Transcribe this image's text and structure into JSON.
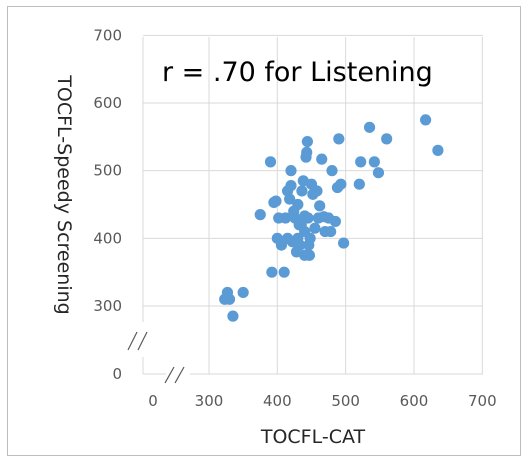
{
  "chart_data": {
    "type": "scatter",
    "title": "",
    "annotation": "r = .70 for Listening",
    "xlabel": "TOCFL-CAT",
    "ylabel": "TOCFL-Speedy Screening",
    "x_ticks": [
      "0",
      "300",
      "400",
      "500",
      "600",
      "700"
    ],
    "y_ticks": [
      "0",
      "300",
      "400",
      "500",
      "600",
      "700"
    ],
    "xlim": [
      250,
      700
    ],
    "ylim": [
      250,
      700
    ],
    "axis_breaks": true,
    "grid": true,
    "marker_color": "#5b9bd5",
    "series": [
      {
        "points": [
          [
            323,
            310
          ],
          [
            327,
            320
          ],
          [
            330,
            310
          ],
          [
            335,
            285
          ],
          [
            350,
            320
          ],
          [
            375,
            435
          ],
          [
            390,
            513
          ],
          [
            392,
            350
          ],
          [
            395,
            453
          ],
          [
            398,
            455
          ],
          [
            400,
            400
          ],
          [
            402,
            430
          ],
          [
            406,
            390
          ],
          [
            410,
            350
          ],
          [
            412,
            430
          ],
          [
            415,
            470
          ],
          [
            415,
            400
          ],
          [
            418,
            458
          ],
          [
            420,
            500
          ],
          [
            420,
            478
          ],
          [
            422,
            395
          ],
          [
            424,
            440
          ],
          [
            426,
            430
          ],
          [
            428,
            380
          ],
          [
            430,
            400
          ],
          [
            430,
            450
          ],
          [
            432,
            420
          ],
          [
            433,
            390
          ],
          [
            435,
            420
          ],
          [
            436,
            470
          ],
          [
            438,
            485
          ],
          [
            440,
            433
          ],
          [
            440,
            375
          ],
          [
            440,
            410
          ],
          [
            442,
            520
          ],
          [
            443,
            527
          ],
          [
            444,
            543
          ],
          [
            445,
            430
          ],
          [
            446,
            390
          ],
          [
            447,
            375
          ],
          [
            448,
            400
          ],
          [
            450,
            480
          ],
          [
            452,
            465
          ],
          [
            455,
            415
          ],
          [
            458,
            470
          ],
          [
            460,
            430
          ],
          [
            462,
            448
          ],
          [
            465,
            517
          ],
          [
            468,
            432
          ],
          [
            470,
            410
          ],
          [
            475,
            430
          ],
          [
            478,
            410
          ],
          [
            480,
            500
          ],
          [
            485,
            425
          ],
          [
            488,
            475
          ],
          [
            490,
            547
          ],
          [
            493,
            480
          ],
          [
            497,
            393
          ],
          [
            520,
            480
          ],
          [
            522,
            513
          ],
          [
            535,
            564
          ],
          [
            542,
            513
          ],
          [
            548,
            497
          ],
          [
            560,
            547
          ],
          [
            617,
            575
          ],
          [
            635,
            530
          ]
        ]
      }
    ]
  }
}
